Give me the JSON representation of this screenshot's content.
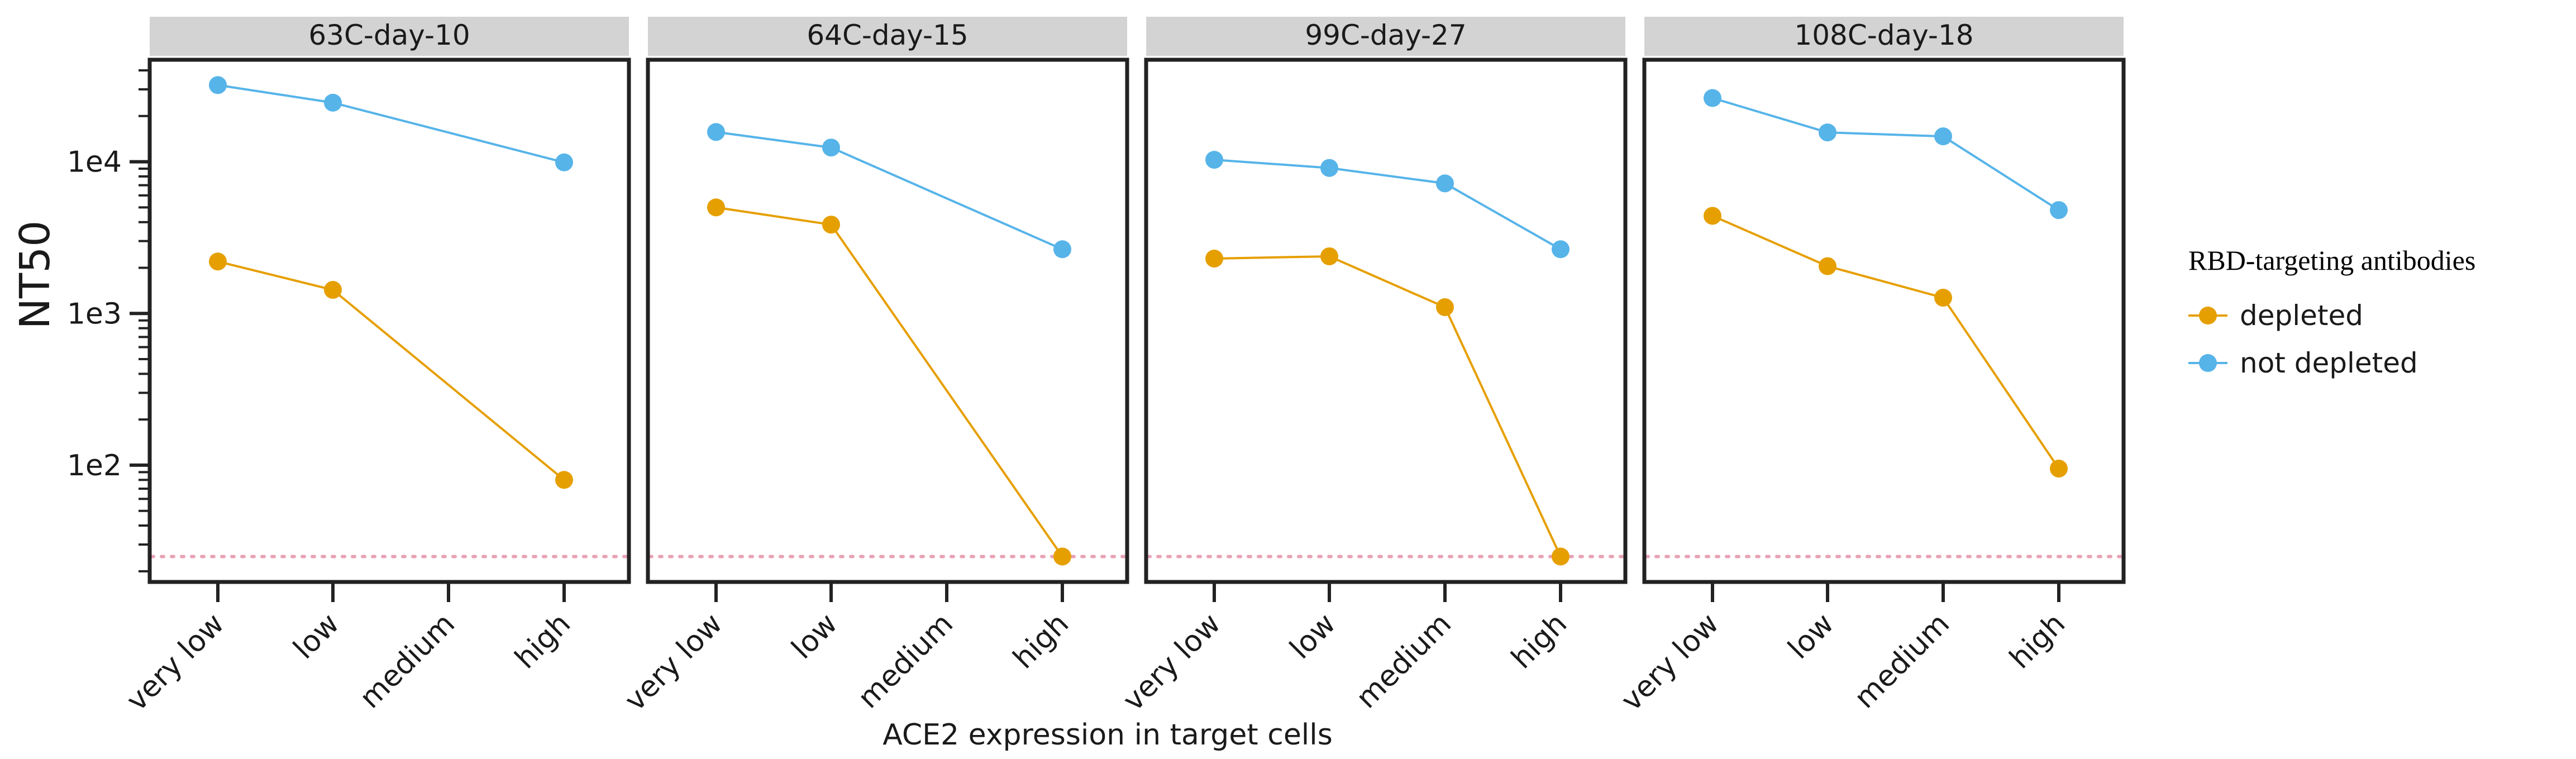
{
  "chart_data": {
    "type": "line",
    "facets": [
      "63C-day-10",
      "64C-day-15",
      "99C-day-27",
      "108C-day-18"
    ],
    "categories": [
      "very low",
      "low",
      "medium",
      "high"
    ],
    "xlabel": "ACE2 expression in target cells",
    "ylabel": "NT50",
    "yscale": "log",
    "ylim": [
      17,
      47000
    ],
    "yticks": [
      {
        "value": 100,
        "label": "1e2"
      },
      {
        "value": 1000,
        "label": "1e3"
      },
      {
        "value": 10000,
        "label": "1e4"
      }
    ],
    "detection_limit": 25,
    "legend": {
      "title": "RBD-targeting antibodies",
      "position": "right"
    },
    "series": [
      {
        "name": "depleted",
        "color": "#E69F00",
        "panels": [
          [
            2200,
            1430,
            null,
            80
          ],
          [
            5000,
            3850,
            null,
            25
          ],
          [
            2300,
            2380,
            1100,
            25
          ],
          [
            4400,
            2050,
            1270,
            95
          ]
        ]
      },
      {
        "name": "not depleted",
        "color": "#56B4E9",
        "panels": [
          [
            32000,
            24500,
            null,
            9900
          ],
          [
            15700,
            12400,
            null,
            2650
          ],
          [
            10300,
            9100,
            7200,
            2650
          ],
          [
            26300,
            15600,
            14700,
            4800
          ]
        ]
      }
    ],
    "colors": {
      "frame": "#222222",
      "strip": "#d3d3d3",
      "detection_line": "#e8a2b4"
    }
  }
}
